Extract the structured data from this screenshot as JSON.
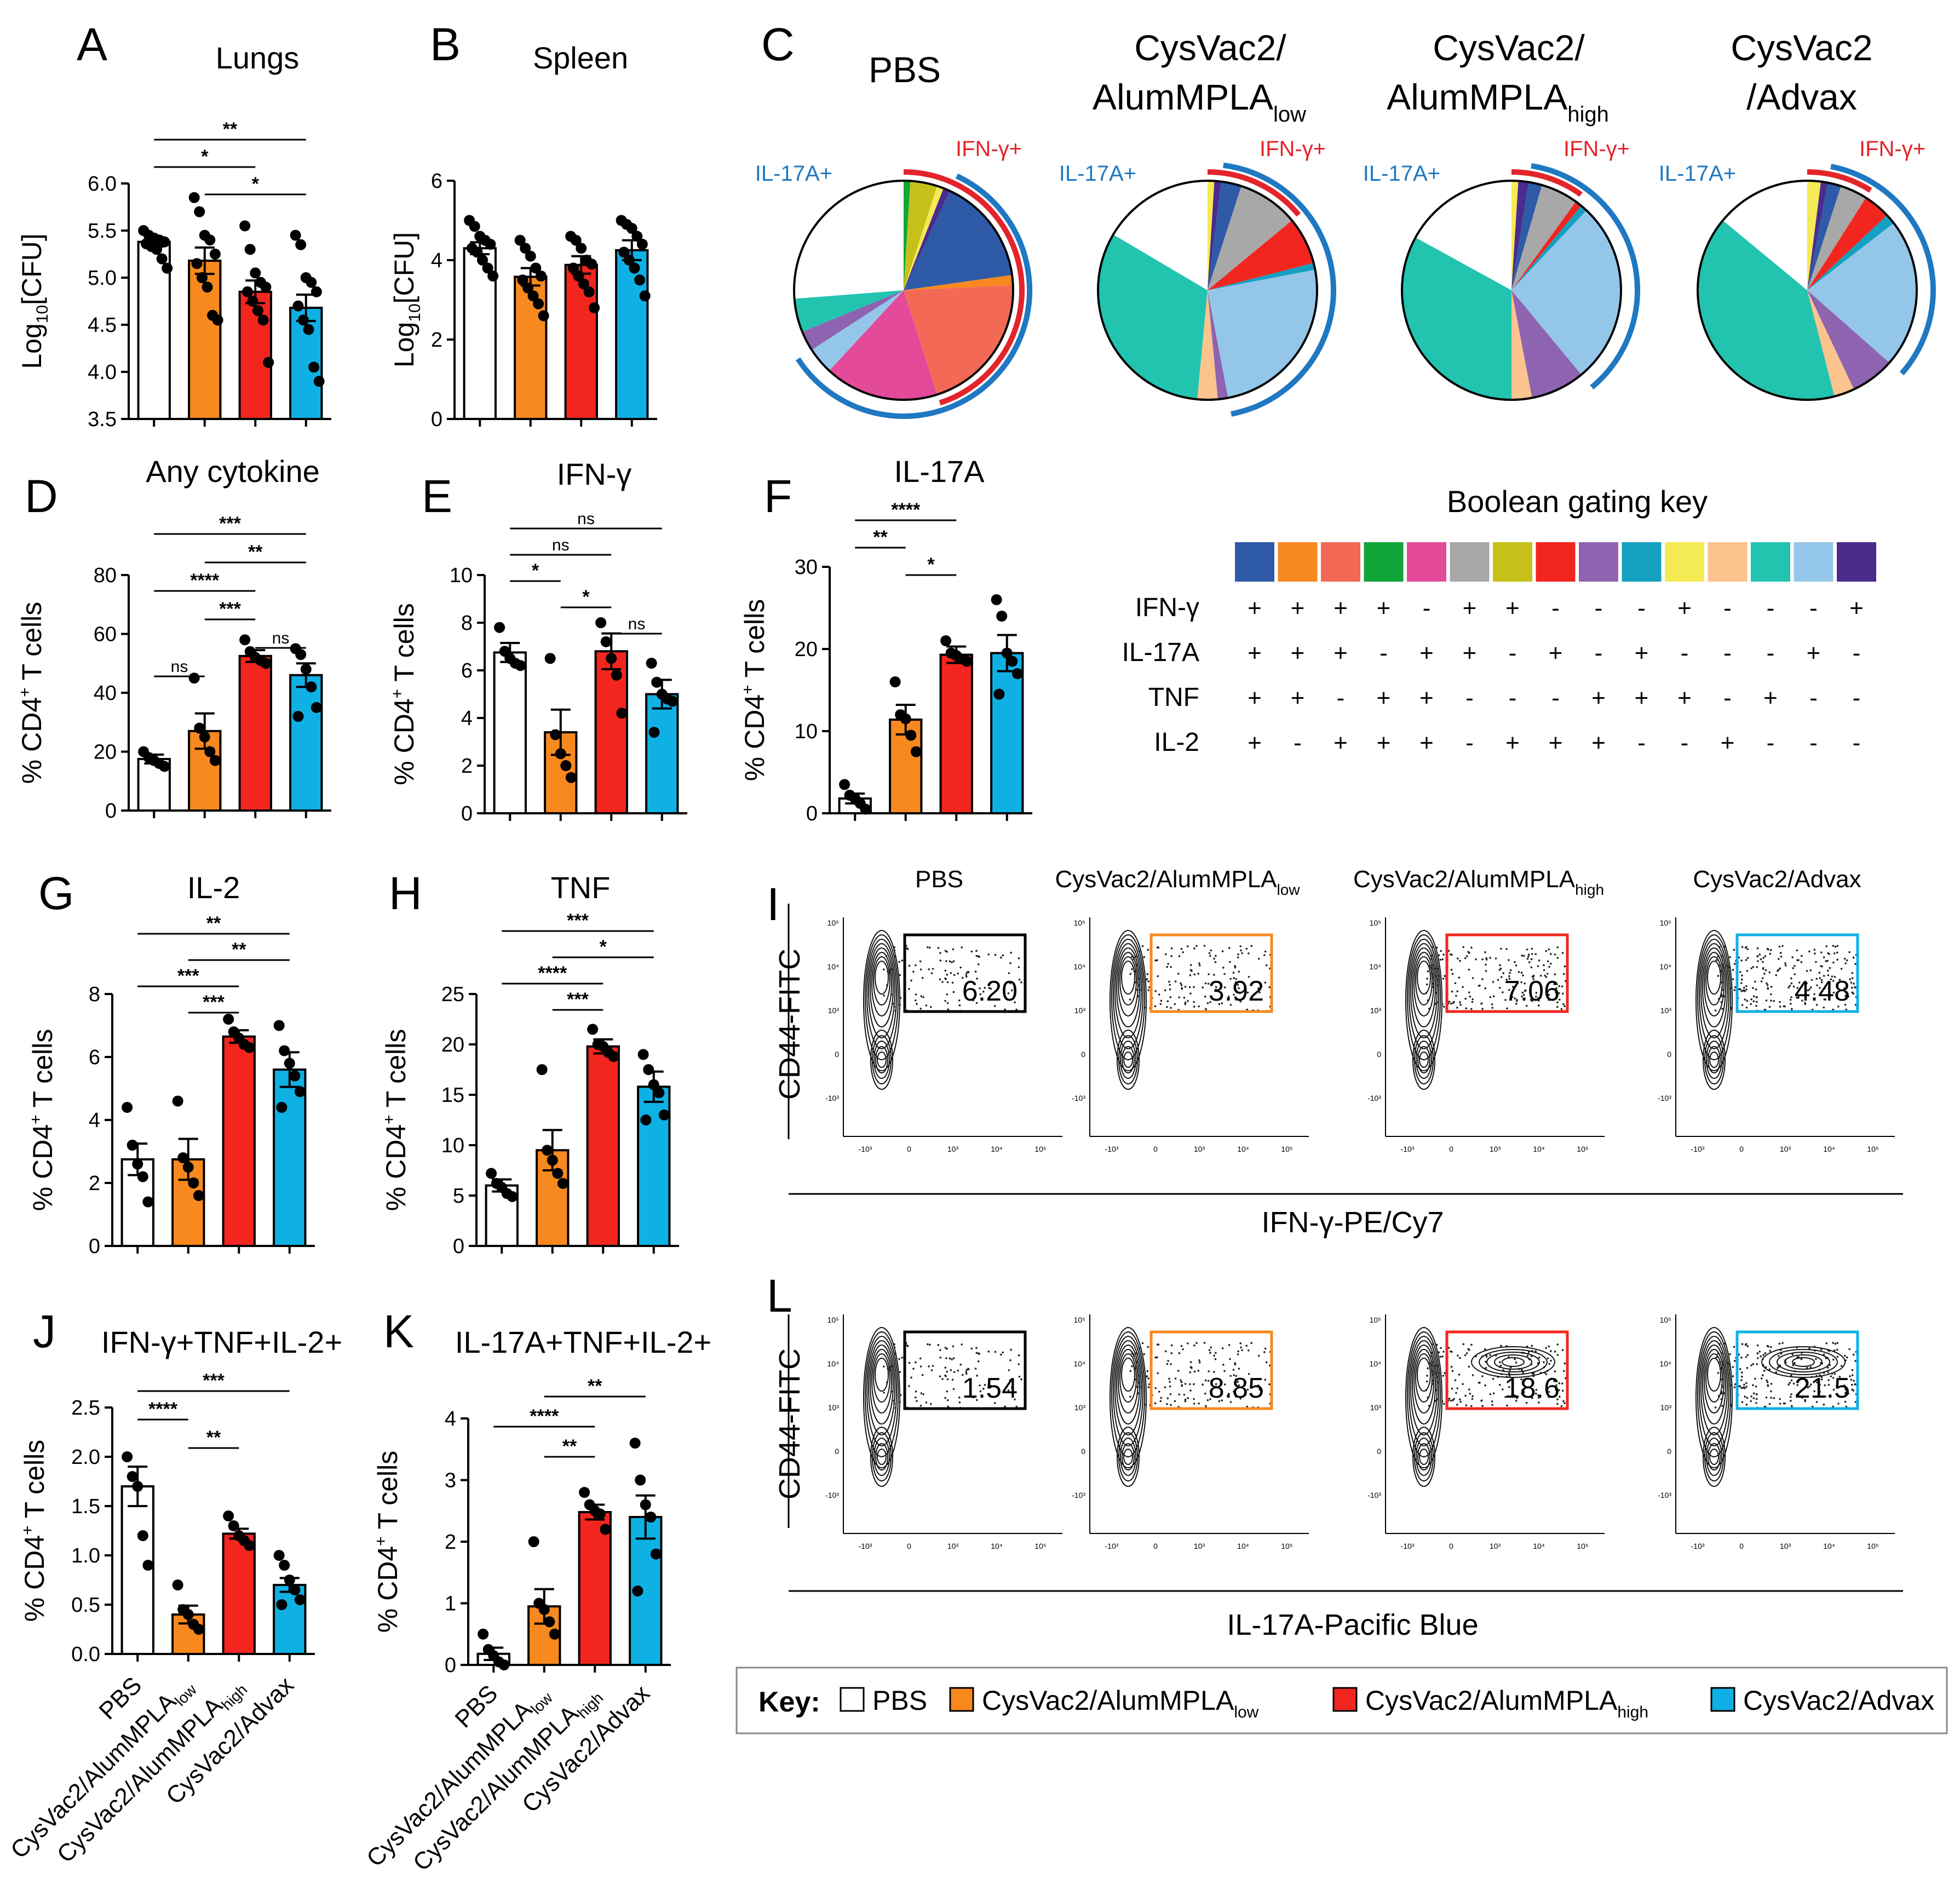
{
  "groups": [
    "PBS",
    "CysVac2/AlumMPLA",
    "CysVac2/AlumMPLA",
    "CysVac2/Advax"
  ],
  "group_subscripts": [
    "",
    "low",
    "high",
    ""
  ],
  "colors": {
    "PBS": "#ffffff",
    "low": "#f7891f",
    "high": "#f2261f",
    "advax": "#0fb1e5",
    "ifn": "#e3242b",
    "il17": "#1f78c1"
  },
  "panel_labels": {
    "A": "A",
    "B": "B",
    "C": "C",
    "D": "D",
    "E": "E",
    "F": "F",
    "G": "G",
    "H": "H",
    "I": "I",
    "J": "J",
    "K": "K",
    "L": "L"
  },
  "ylabels": {
    "cfu_prefix": "Log",
    "cfu_sub": "10",
    "cfu_rest": "[CFU]",
    "cd4_prefix": "% CD4",
    "cd4_sup": "+",
    "cd4_rest": " T cells"
  },
  "chart_data": [
    {
      "id": "A",
      "type": "bar",
      "title": "Lungs",
      "ylabel": "Log10[CFU]",
      "ylim": [
        3.5,
        6.0
      ],
      "yticks": [
        "6.0",
        "5.5",
        "5.0",
        "4.5",
        "4.0",
        "3.5"
      ],
      "values": [
        5.38,
        5.18,
        4.85,
        4.68
      ],
      "errors": [
        0.05,
        0.14,
        0.12,
        0.14
      ],
      "points": [
        [
          5.5,
          5.45,
          5.42,
          5.4,
          5.38,
          5.36,
          5.33,
          5.3,
          5.2,
          5.1
        ],
        [
          5.85,
          5.7,
          5.45,
          5.4,
          5.25,
          5.15,
          5.0,
          4.9,
          4.6,
          4.55
        ],
        [
          5.55,
          5.3,
          5.05,
          4.95,
          4.9,
          4.85,
          4.75,
          4.65,
          4.55,
          4.1
        ],
        [
          5.45,
          5.35,
          5.0,
          4.95,
          4.85,
          4.7,
          4.55,
          4.45,
          4.05,
          3.9
        ]
      ],
      "sig": [
        {
          "text": "**",
          "from": 0,
          "to": 3
        },
        {
          "text": "*",
          "from": 0,
          "to": 2
        },
        {
          "text": "*",
          "from": 1,
          "to": 3
        }
      ]
    },
    {
      "id": "B",
      "type": "bar",
      "title": "Spleen",
      "ylabel": "Log10[CFU]",
      "ylim": [
        0,
        6
      ],
      "yticks": [
        "6",
        "4",
        "2",
        "0"
      ],
      "values": [
        4.3,
        3.58,
        3.88,
        4.25
      ],
      "errors": [
        0.15,
        0.22,
        0.22,
        0.25
      ],
      "points": [
        [
          5.0,
          4.85,
          4.6,
          4.5,
          4.4,
          4.3,
          4.2,
          4.0,
          3.8,
          3.6
        ],
        [
          4.5,
          4.3,
          4.1,
          3.8,
          3.6,
          3.5,
          3.3,
          3.1,
          2.9,
          2.6
        ],
        [
          4.6,
          4.5,
          4.3,
          4.0,
          3.9,
          3.8,
          3.6,
          3.4,
          3.2,
          2.8
        ],
        [
          5.0,
          4.9,
          4.8,
          4.6,
          4.4,
          4.2,
          4.0,
          3.8,
          3.5,
          3.1
        ]
      ],
      "sig": []
    },
    {
      "id": "D",
      "type": "bar",
      "title": "Any cytokine",
      "ylabel": "% CD4+ T cells",
      "ylim": [
        0,
        80
      ],
      "yticks": [
        "80",
        "60",
        "40",
        "20",
        "0"
      ],
      "values": [
        17.5,
        27.0,
        52.5,
        46.0
      ],
      "errors": [
        1.5,
        6.0,
        2.0,
        4.0
      ],
      "points": [
        [
          20,
          18,
          17,
          16,
          15
        ],
        [
          45,
          28,
          25,
          20,
          17
        ],
        [
          58,
          54,
          52,
          51,
          50
        ],
        [
          55,
          53,
          48,
          42,
          35,
          32
        ]
      ],
      "sig": [
        {
          "text": "***",
          "from": 0,
          "to": 3
        },
        {
          "text": "**",
          "from": 1,
          "to": 3
        },
        {
          "text": "****",
          "from": 0,
          "to": 2
        },
        {
          "text": "***",
          "from": 1,
          "to": 2
        },
        {
          "text": "ns",
          "from": 2,
          "to": 3
        },
        {
          "text": "ns",
          "from": 0,
          "to": 1
        }
      ]
    },
    {
      "id": "E",
      "type": "bar",
      "title": "IFN-γ",
      "ylabel": "% CD4+ T cells",
      "ylim": [
        0,
        10
      ],
      "yticks": [
        "10",
        "8",
        "6",
        "4",
        "2",
        "0"
      ],
      "values": [
        6.75,
        3.4,
        6.8,
        5.0
      ],
      "errors": [
        0.4,
        0.95,
        0.75,
        0.6
      ],
      "points": [
        [
          7.8,
          6.8,
          6.5,
          6.3,
          6.2
        ],
        [
          6.5,
          3.3,
          2.5,
          2.0,
          1.5
        ],
        [
          8.0,
          7.2,
          6.5,
          5.8,
          4.2
        ],
        [
          6.3,
          5.5,
          5.0,
          4.8,
          4.7,
          3.4
        ]
      ],
      "sig": [
        {
          "text": "ns",
          "from": 0,
          "to": 3
        },
        {
          "text": "ns",
          "from": 0,
          "to": 2
        },
        {
          "text": "*",
          "from": 0,
          "to": 1
        },
        {
          "text": "*",
          "from": 1,
          "to": 2
        },
        {
          "text": "ns",
          "from": 2,
          "to": 3
        }
      ]
    },
    {
      "id": "F",
      "type": "bar",
      "title": "IL-17A",
      "ylabel": "% CD4+ T cells",
      "ylim": [
        0,
        30
      ],
      "yticks": [
        "30",
        "20",
        "10",
        "0"
      ],
      "values": [
        1.8,
        11.4,
        19.3,
        19.5
      ],
      "errors": [
        0.6,
        1.8,
        1.0,
        2.2
      ],
      "points": [
        [
          3.5,
          2.2,
          1.8,
          1.2,
          0.5
        ],
        [
          16,
          12,
          11.5,
          9.5,
          7.5
        ],
        [
          21,
          19.5,
          19.2,
          18.8,
          18.5
        ],
        [
          26,
          24,
          19.5,
          18.5,
          17,
          14.5
        ]
      ],
      "sig": [
        {
          "text": "****",
          "from": 0,
          "to": 2
        },
        {
          "text": "**",
          "from": 0,
          "to": 1
        },
        {
          "text": "*",
          "from": 1,
          "to": 2
        }
      ]
    },
    {
      "id": "G",
      "type": "bar",
      "title": "IL-2",
      "ylabel": "% CD4+ T cells",
      "ylim": [
        0,
        8
      ],
      "yticks": [
        "8",
        "6",
        "4",
        "2",
        "0"
      ],
      "values": [
        2.75,
        2.75,
        6.65,
        5.6
      ],
      "errors": [
        0.5,
        0.65,
        0.2,
        0.55
      ],
      "points": [
        [
          4.4,
          3.2,
          2.6,
          2.2,
          1.4
        ],
        [
          4.6,
          2.8,
          2.5,
          2.0,
          1.6
        ],
        [
          7.2,
          6.8,
          6.6,
          6.4,
          6.3
        ],
        [
          7.0,
          6.2,
          5.8,
          5.4,
          4.9,
          4.4
        ]
      ],
      "sig": [
        {
          "text": "**",
          "from": 0,
          "to": 3
        },
        {
          "text": "**",
          "from": 1,
          "to": 3
        },
        {
          "text": "***",
          "from": 0,
          "to": 2
        },
        {
          "text": "***",
          "from": 1,
          "to": 2
        }
      ]
    },
    {
      "id": "H",
      "type": "bar",
      "title": "TNF",
      "ylabel": "% CD4+ T cells",
      "ylim": [
        0,
        25
      ],
      "yticks": [
        "25",
        "20",
        "15",
        "10",
        "5",
        "0"
      ],
      "values": [
        6.0,
        9.5,
        19.8,
        15.8
      ],
      "errors": [
        0.6,
        2.0,
        0.7,
        1.5
      ],
      "points": [
        [
          7.2,
          6.2,
          5.8,
          5.2,
          4.9
        ],
        [
          17.5,
          9.5,
          8.5,
          7.2,
          6.2
        ],
        [
          21.5,
          20,
          19.8,
          19.2,
          18.8
        ],
        [
          19,
          17.5,
          16,
          15.2,
          13,
          12.5
        ]
      ],
      "sig": [
        {
          "text": "***",
          "from": 0,
          "to": 3
        },
        {
          "text": "*",
          "from": 1,
          "to": 3
        },
        {
          "text": "****",
          "from": 0,
          "to": 2
        },
        {
          "text": "***",
          "from": 1,
          "to": 2
        }
      ]
    },
    {
      "id": "J",
      "type": "bar",
      "title": "IFN-γ+TNF+IL-2+",
      "ylabel": "% CD4+ T cells",
      "ylim": [
        0,
        2.5
      ],
      "yticks": [
        "2.5",
        "2.0",
        "1.5",
        "1.0",
        "0.5",
        "0.0"
      ],
      "values": [
        1.7,
        0.4,
        1.22,
        0.7
      ],
      "errors": [
        0.2,
        0.09,
        0.05,
        0.07
      ],
      "points": [
        [
          2.0,
          1.8,
          1.7,
          1.2,
          0.9
        ],
        [
          0.7,
          0.45,
          0.4,
          0.3,
          0.25
        ],
        [
          1.4,
          1.3,
          1.2,
          1.15,
          1.1
        ],
        [
          1.0,
          0.9,
          0.75,
          0.65,
          0.55,
          0.5
        ]
      ],
      "sig": [
        {
          "text": "***",
          "from": 0,
          "to": 3
        },
        {
          "text": "****",
          "from": 0,
          "to": 1
        },
        {
          "text": "**",
          "from": 1,
          "to": 2
        }
      ]
    },
    {
      "id": "K",
      "type": "bar",
      "title": "IL-17A+TNF+IL-2+",
      "ylabel": "% CD4+ T cells",
      "ylim": [
        0,
        4
      ],
      "yticks": [
        "4",
        "3",
        "2",
        "1",
        "0"
      ],
      "values": [
        0.18,
        0.95,
        2.48,
        2.4
      ],
      "errors": [
        0.1,
        0.28,
        0.12,
        0.35
      ],
      "points": [
        [
          0.5,
          0.25,
          0.15,
          0.05,
          0.0
        ],
        [
          2.0,
          1.0,
          0.9,
          0.7,
          0.5
        ],
        [
          2.8,
          2.6,
          2.5,
          2.45,
          2.2
        ],
        [
          3.6,
          3.0,
          2.6,
          2.4,
          1.8,
          1.2
        ]
      ],
      "sig": [
        {
          "text": "**",
          "from": 1,
          "to": 3
        },
        {
          "text": "****",
          "from": 0,
          "to": 2
        },
        {
          "text": "**",
          "from": 1,
          "to": 2
        }
      ]
    }
  ],
  "pies": {
    "titles": [
      "PBS",
      "CysVac2/",
      "AlumMPLA",
      "low",
      "CysVac2/",
      "AlumMPLA",
      "high",
      "CysVac2",
      "/Advax"
    ],
    "il17_label": "IL-17A+",
    "ifn_label": "IFN-γ+",
    "data": [
      [
        0.16,
        0.015,
        0.21,
        0.01,
        0.17,
        0.0,
        0.04,
        0.0,
        0.03,
        0.0,
        0.01,
        0.0,
        0.05,
        0.04,
        0.01,
        0.265
      ],
      [
        0.03,
        0.0,
        0.0,
        0.0,
        0.0,
        0.09,
        0.0,
        0.07,
        0.015,
        0.01,
        0.01,
        0.03,
        0.32,
        0.25,
        0.01,
        0.165
      ],
      [
        0.02,
        0.0,
        0.0,
        0.0,
        0.0,
        0.055,
        0.0,
        0.01,
        0.08,
        0.01,
        0.01,
        0.03,
        0.33,
        0.27,
        0.015,
        0.17
      ],
      [
        0.02,
        0.0,
        0.0,
        0.0,
        0.0,
        0.04,
        0.0,
        0.04,
        0.065,
        0.015,
        0.02,
        0.03,
        0.4,
        0.22,
        0.01,
        0.14
      ]
    ]
  },
  "boolean_key": {
    "title": "Boolean gating key",
    "colors": [
      "#2e5aa8",
      "#f7891f",
      "#f26a55",
      "#12a538",
      "#e44a9a",
      "#a8a8a8",
      "#c5c11a",
      "#f2261f",
      "#8e63b0",
      "#14a0c0",
      "#f4ea54",
      "#fbc38d",
      "#22c4b0",
      "#94c6e9",
      "#4b2c8c"
    ],
    "rows": [
      {
        "label": "IFN-γ",
        "signs": [
          "+",
          "+",
          "+",
          "+",
          "-",
          "+",
          "+",
          "-",
          "-",
          "-",
          "+",
          "-",
          "-",
          "-",
          "+"
        ]
      },
      {
        "label": "IL-17A",
        "signs": [
          "+",
          "+",
          "+",
          "-",
          "+",
          "+",
          "-",
          "+",
          "-",
          "+",
          "-",
          "-",
          "-",
          "+",
          "-"
        ]
      },
      {
        "label": "TNF",
        "signs": [
          "+",
          "+",
          "-",
          "+",
          "+",
          "-",
          "-",
          "-",
          "+",
          "+",
          "+",
          "-",
          "+",
          "-",
          "-"
        ]
      },
      {
        "label": "IL-2",
        "signs": [
          "+",
          "-",
          "+",
          "+",
          "+",
          "-",
          "+",
          "+",
          "+",
          "-",
          "-",
          "+",
          "-",
          "-",
          "-"
        ]
      }
    ]
  },
  "flow_I": {
    "group_titles": [
      "PBS",
      "CysVac2/AlumMPLA",
      "low",
      "CysVac2/AlumMPLA",
      "high",
      "CysVac2/Advax"
    ],
    "gate_values": [
      "6.20",
      "3.92",
      "7.06",
      "4.48"
    ],
    "ylabel": "CD44-FITC",
    "xlabel": "IFN-γ-PE/Cy7"
  },
  "flow_L": {
    "gate_values": [
      "1.54",
      "8.85",
      "18.6",
      "21.5"
    ],
    "ylabel": "CD44-FITC",
    "xlabel": "IL-17A-Pacific Blue"
  },
  "flow_ticks": {
    "y": [
      "10⁵",
      "10⁴",
      "10³",
      "0",
      "-10³"
    ],
    "x": [
      "-10³",
      "0",
      "10³",
      "10⁴",
      "10⁵"
    ]
  },
  "xlabels_bottom": [
    "PBS",
    "CysVac2/AlumMPLA",
    "low",
    "CysVac2/AlumMPLA",
    "high",
    "CysVac2/Advax"
  ],
  "legend": {
    "title": "Key:",
    "items": [
      {
        "label": "PBS",
        "sub": "",
        "color": "#ffffff"
      },
      {
        "label": "CysVac2/AlumMPLA",
        "sub": "low",
        "color": "#f7891f"
      },
      {
        "label": "CysVac2/AlumMPLA",
        "sub": "high",
        "color": "#f2261f"
      },
      {
        "label": "CysVac2/Advax",
        "sub": "",
        "color": "#0fb1e5"
      }
    ]
  }
}
